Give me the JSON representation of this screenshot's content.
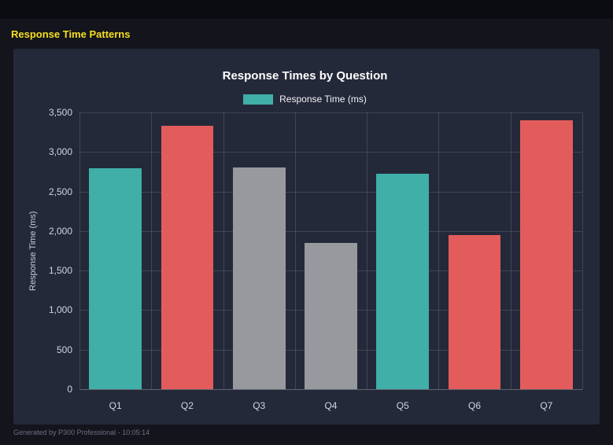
{
  "header": {
    "title": "Response Time Patterns"
  },
  "footer": {
    "text": "Generated by P300 Professional - 10:05:14"
  },
  "colors": {
    "teal": "#3fafa8",
    "red": "#e25c5c",
    "gray": "#98989f",
    "accent_yellow": "#f7df1e",
    "panel_bg": "#242939",
    "page_bg": "#13141c"
  },
  "chart_data": {
    "type": "bar",
    "title": "Response Times by Question",
    "legend": "Response Time (ms)",
    "xlabel": "",
    "ylabel": "Response Time (ms)",
    "categories": [
      "Q1",
      "Q2",
      "Q3",
      "Q4",
      "Q5",
      "Q6",
      "Q7"
    ],
    "values": [
      2790,
      3330,
      2800,
      1845,
      2725,
      1950,
      3400
    ],
    "bar_colors": [
      "teal",
      "red",
      "gray",
      "gray",
      "teal",
      "red",
      "red"
    ],
    "ylim": [
      0,
      3500
    ],
    "yticks": [
      0,
      500,
      1000,
      1500,
      2000,
      2500,
      3000,
      3500
    ],
    "grid": true,
    "legend_position": "top"
  }
}
